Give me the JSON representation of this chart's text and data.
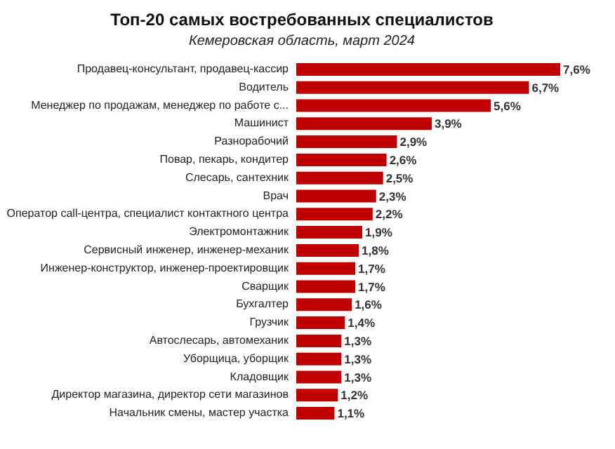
{
  "chart_data": {
    "type": "bar",
    "orientation": "horizontal",
    "title": "Топ-20 самых востребованных специалистов",
    "subtitle": "Кемеровская область, март 2024",
    "categories": [
      "Продавец-консультант, продавец-кассир",
      "Водитель",
      "Менеджер по продажам, менеджер по работе с...",
      "Машинист",
      "Разнорабочий",
      "Повар, пекарь, кондитер",
      "Слесарь, сантехник",
      "Врач",
      "Оператор call-центра, специалист контактного центра",
      "Электромонтажник",
      "Сервисный инженер, инженер-механик",
      "Инженер-конструктор, инженер-проектировщик",
      "Сварщик",
      "Бухгалтер",
      "Грузчик",
      "Автослесарь, автомеханик",
      "Уборщица, уборщик",
      "Кладовщик",
      "Директор магазина, директор сети магазинов",
      "Начальник смены, мастер участка"
    ],
    "values": [
      7.6,
      6.7,
      5.6,
      3.9,
      2.9,
      2.6,
      2.5,
      2.3,
      2.2,
      1.9,
      1.8,
      1.7,
      1.7,
      1.6,
      1.4,
      1.3,
      1.3,
      1.3,
      1.2,
      1.1
    ],
    "value_labels": [
      "7,6%",
      "6,7%",
      "5,6%",
      "3,9%",
      "2,9%",
      "2,6%",
      "2,5%",
      "2,3%",
      "2,2%",
      "1,9%",
      "1,8%",
      "1,7%",
      "1,7%",
      "1,6%",
      "1,4%",
      "1,3%",
      "1,3%",
      "1,3%",
      "1,2%",
      "1,1%"
    ],
    "color": "#c00000"
  }
}
